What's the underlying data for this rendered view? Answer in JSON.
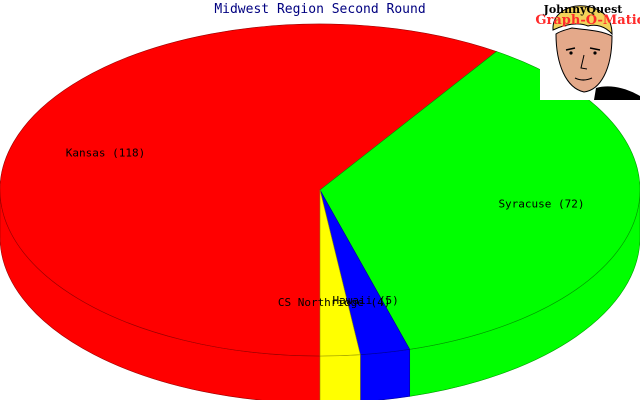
{
  "logo": {
    "line1": "JohnnyQuest",
    "line2": "Graph-O-Matic"
  },
  "chart_data": {
    "type": "pie",
    "title": "Midwest Region Second Round",
    "style": "3d-extruded",
    "slices": [
      {
        "label": "Kansas (118)",
        "name": "Kansas",
        "value": 118,
        "color": "#ff0000"
      },
      {
        "label": "Syracuse (72)",
        "name": "Syracuse",
        "value": 72,
        "color": "#00ff00"
      },
      {
        "label": "Hawaii (5)",
        "name": "Hawaii",
        "value": 5,
        "color": "#0000ff"
      },
      {
        "label": "CS Northridge (4)",
        "name": "CS Northridge",
        "value": 4,
        "color": "#ffff00"
      }
    ]
  }
}
